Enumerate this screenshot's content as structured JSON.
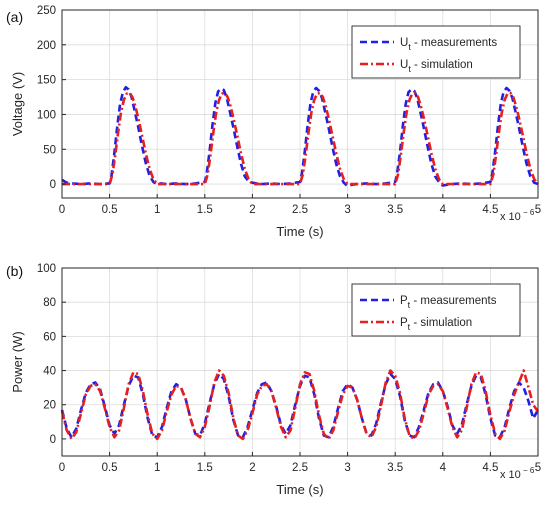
{
  "chart_data": [
    {
      "type": "line",
      "panel_label": "(a)",
      "xlabel": "Time (s)",
      "ylabel": "Voltage (V)",
      "x_multiplier": {
        "base": "x 10",
        "exponent": "− 6"
      },
      "xlim": [
        0,
        5
      ],
      "ylim": [
        -20,
        250
      ],
      "xticks": [
        0,
        0.5,
        1,
        1.5,
        2,
        2.5,
        3,
        3.5,
        4,
        4.5,
        5
      ],
      "xtick_labels": [
        "0",
        "0.5",
        "1",
        "1.5",
        "2",
        "2.5",
        "3",
        "3.5",
        "4",
        "4.5",
        "5"
      ],
      "yticks": [
        0,
        50,
        100,
        150,
        200,
        250
      ],
      "ytick_labels": [
        "0",
        "50",
        "100",
        "150",
        "200",
        "250"
      ],
      "grid": true,
      "legend_position": "top-right",
      "series": [
        {
          "name_main": "U",
          "name_sub": "t",
          "name_rest": " - measurements",
          "color": "#1f1fe6",
          "style": "dashed",
          "x": [
            0,
            0.05,
            0.1,
            0.2,
            0.3,
            0.4,
            0.5,
            0.52,
            0.55,
            0.58,
            0.61,
            0.64,
            0.67,
            0.7,
            0.73,
            0.76,
            0.8,
            0.84,
            0.88,
            0.92,
            0.96,
            1.0,
            1.04,
            1.1,
            1.2,
            1.3,
            1.4,
            1.5,
            1.52,
            1.55,
            1.58,
            1.61,
            1.64,
            1.67,
            1.7,
            1.73,
            1.76,
            1.8,
            1.84,
            1.88,
            1.92,
            1.96,
            2.0,
            2.04,
            2.1,
            2.2,
            2.3,
            2.4,
            2.5,
            2.52,
            2.55,
            2.58,
            2.61,
            2.64,
            2.67,
            2.7,
            2.73,
            2.76,
            2.8,
            2.84,
            2.88,
            2.92,
            2.96,
            3.0,
            3.04,
            3.1,
            3.2,
            3.3,
            3.4,
            3.5,
            3.52,
            3.55,
            3.58,
            3.61,
            3.64,
            3.67,
            3.7,
            3.73,
            3.76,
            3.8,
            3.84,
            3.88,
            3.92,
            3.96,
            4.0,
            4.04,
            4.1,
            4.2,
            4.3,
            4.4,
            4.5,
            4.52,
            4.55,
            4.58,
            4.61,
            4.64,
            4.67,
            4.7,
            4.73,
            4.76,
            4.8,
            4.84,
            4.88,
            4.92,
            4.96,
            5.0
          ],
          "y": [
            6,
            2,
            1,
            0,
            1,
            0,
            1,
            12,
            45,
            82,
            115,
            132,
            139,
            136,
            125,
            107,
            82,
            55,
            30,
            12,
            3,
            0,
            1,
            0,
            1,
            0,
            1,
            3,
            15,
            47,
            84,
            116,
            133,
            137,
            135,
            124,
            106,
            81,
            54,
            29,
            11,
            4,
            2,
            1,
            0,
            1,
            0,
            1,
            3,
            15,
            47,
            84,
            116,
            133,
            138,
            134,
            124,
            106,
            81,
            54,
            29,
            11,
            2,
            -3,
            -1,
            0,
            1,
            0,
            1,
            3,
            15,
            46,
            83,
            115,
            132,
            136,
            134,
            124,
            106,
            81,
            54,
            29,
            11,
            3,
            -2,
            -1,
            0,
            1,
            0,
            1,
            3,
            15,
            47,
            84,
            116,
            133,
            138,
            134,
            124,
            106,
            81,
            54,
            29,
            11,
            2,
            0
          ]
        },
        {
          "name_main": "U",
          "name_sub": "t",
          "name_rest": " - simulation",
          "color": "#e61f1f",
          "style": "dashdot",
          "x": [
            0,
            0.1,
            0.2,
            0.3,
            0.4,
            0.5,
            0.53,
            0.56,
            0.59,
            0.62,
            0.65,
            0.68,
            0.71,
            0.74,
            0.77,
            0.8,
            0.84,
            0.88,
            0.92,
            0.96,
            1.0,
            1.1,
            1.2,
            1.3,
            1.4,
            1.5,
            1.53,
            1.56,
            1.59,
            1.62,
            1.65,
            1.68,
            1.71,
            1.74,
            1.77,
            1.8,
            1.84,
            1.88,
            1.92,
            1.96,
            2.0,
            2.1,
            2.2,
            2.3,
            2.4,
            2.5,
            2.53,
            2.56,
            2.59,
            2.62,
            2.65,
            2.68,
            2.71,
            2.74,
            2.77,
            2.8,
            2.84,
            2.88,
            2.92,
            2.96,
            3.0,
            3.1,
            3.2,
            3.3,
            3.4,
            3.5,
            3.53,
            3.56,
            3.59,
            3.62,
            3.65,
            3.68,
            3.71,
            3.74,
            3.77,
            3.8,
            3.84,
            3.88,
            3.92,
            3.96,
            4.0,
            4.1,
            4.2,
            4.3,
            4.4,
            4.5,
            4.53,
            4.56,
            4.59,
            4.62,
            4.65,
            4.68,
            4.71,
            4.74,
            4.77,
            4.8,
            4.84,
            4.88,
            4.92,
            4.96,
            5.0
          ],
          "y": [
            0,
            0,
            0,
            0,
            0,
            0,
            14,
            42,
            75,
            103,
            121,
            130,
            131,
            125,
            112,
            95,
            70,
            44,
            22,
            7,
            0,
            0,
            0,
            0,
            0,
            0,
            14,
            42,
            75,
            103,
            121,
            130,
            131,
            125,
            112,
            95,
            70,
            44,
            22,
            7,
            0,
            0,
            0,
            0,
            0,
            0,
            14,
            42,
            75,
            103,
            121,
            130,
            131,
            125,
            112,
            95,
            70,
            44,
            22,
            7,
            0,
            0,
            0,
            0,
            0,
            0,
            14,
            42,
            75,
            103,
            121,
            130,
            131,
            125,
            112,
            95,
            70,
            44,
            22,
            7,
            0,
            0,
            0,
            0,
            0,
            0,
            14,
            42,
            75,
            103,
            121,
            130,
            131,
            125,
            112,
            95,
            70,
            44,
            22,
            7,
            0
          ]
        }
      ]
    },
    {
      "type": "line",
      "panel_label": "(b)",
      "xlabel": "Time (s)",
      "ylabel": "Power (W)",
      "x_multiplier": {
        "base": "x 10",
        "exponent": "− 6"
      },
      "xlim": [
        0,
        5
      ],
      "ylim": [
        -10,
        100
      ],
      "xticks": [
        0,
        0.5,
        1,
        1.5,
        2,
        2.5,
        3,
        3.5,
        4,
        4.5,
        5
      ],
      "xtick_labels": [
        "0",
        "0.5",
        "1",
        "1.5",
        "2",
        "2.5",
        "3",
        "3.5",
        "4",
        "4.5",
        "5"
      ],
      "yticks": [
        0,
        20,
        40,
        60,
        80,
        100
      ],
      "ytick_labels": [
        "0",
        "20",
        "40",
        "60",
        "80",
        "100"
      ],
      "grid": true,
      "legend_position": "top-right",
      "series": [
        {
          "name_main": "P",
          "name_sub": "t",
          "name_rest": " - measurements",
          "color": "#1f1fe6",
          "style": "dashed",
          "x": [
            0,
            0.05,
            0.1,
            0.15,
            0.2,
            0.25,
            0.3,
            0.35,
            0.4,
            0.45,
            0.5,
            0.55,
            0.6,
            0.65,
            0.7,
            0.75,
            0.8,
            0.85,
            0.9,
            0.95,
            1.0,
            1.05,
            1.1,
            1.15,
            1.2,
            1.25,
            1.3,
            1.35,
            1.4,
            1.45,
            1.5,
            1.55,
            1.6,
            1.65,
            1.7,
            1.75,
            1.8,
            1.85,
            1.9,
            1.95,
            2.0,
            2.05,
            2.1,
            2.15,
            2.2,
            2.25,
            2.3,
            2.35,
            2.4,
            2.45,
            2.5,
            2.55,
            2.6,
            2.65,
            2.7,
            2.75,
            2.8,
            2.85,
            2.9,
            2.95,
            3.0,
            3.05,
            3.1,
            3.15,
            3.2,
            3.25,
            3.3,
            3.35,
            3.4,
            3.45,
            3.5,
            3.55,
            3.6,
            3.65,
            3.7,
            3.75,
            3.8,
            3.85,
            3.9,
            3.95,
            4.0,
            4.05,
            4.1,
            4.15,
            4.2,
            4.25,
            4.3,
            4.35,
            4.4,
            4.45,
            4.5,
            4.55,
            4.6,
            4.65,
            4.7,
            4.75,
            4.8,
            4.85,
            4.9,
            4.95,
            5.0
          ],
          "y": [
            17,
            6,
            1,
            6,
            17,
            27,
            32,
            33,
            29,
            19,
            8,
            3,
            8,
            20,
            31,
            37,
            36,
            26,
            12,
            2,
            1,
            7,
            18,
            28,
            32,
            30,
            23,
            12,
            3,
            2,
            9,
            21,
            32,
            38,
            35,
            25,
            11,
            2,
            1,
            7,
            17,
            27,
            32,
            33,
            28,
            19,
            8,
            3,
            8,
            20,
            31,
            37,
            36,
            26,
            12,
            2,
            1,
            7,
            18,
            28,
            32,
            30,
            23,
            12,
            3,
            2,
            9,
            21,
            32,
            38,
            35,
            25,
            11,
            2,
            1,
            7,
            17,
            27,
            32,
            33,
            28,
            19,
            8,
            3,
            8,
            20,
            31,
            37,
            36,
            26,
            12,
            2,
            1,
            7,
            18,
            28,
            33,
            30,
            22,
            12,
            17
          ]
        },
        {
          "name_main": "P",
          "name_sub": "t",
          "name_rest": " - simulation",
          "color": "#e61f1f",
          "style": "dashdot",
          "x": [
            0,
            0.05,
            0.1,
            0.15,
            0.2,
            0.25,
            0.3,
            0.35,
            0.4,
            0.45,
            0.5,
            0.55,
            0.6,
            0.65,
            0.7,
            0.75,
            0.8,
            0.85,
            0.9,
            0.95,
            1.0,
            1.05,
            1.1,
            1.15,
            1.2,
            1.25,
            1.3,
            1.35,
            1.4,
            1.45,
            1.5,
            1.55,
            1.6,
            1.65,
            1.7,
            1.75,
            1.8,
            1.85,
            1.9,
            1.95,
            2.0,
            2.05,
            2.1,
            2.15,
            2.2,
            2.25,
            2.3,
            2.35,
            2.4,
            2.45,
            2.5,
            2.55,
            2.6,
            2.65,
            2.7,
            2.75,
            2.8,
            2.85,
            2.9,
            2.95,
            3.0,
            3.05,
            3.1,
            3.15,
            3.2,
            3.25,
            3.3,
            3.35,
            3.4,
            3.45,
            3.5,
            3.55,
            3.6,
            3.65,
            3.7,
            3.75,
            3.8,
            3.85,
            3.9,
            3.95,
            4.0,
            4.05,
            4.1,
            4.15,
            4.2,
            4.25,
            4.3,
            4.35,
            4.4,
            4.45,
            4.5,
            4.55,
            4.6,
            4.65,
            4.7,
            4.75,
            4.8,
            4.85,
            4.9,
            4.95,
            5.0
          ],
          "y": [
            16,
            5,
            0,
            4,
            15,
            26,
            31,
            32,
            28,
            18,
            7,
            1,
            5,
            18,
            32,
            39,
            38,
            28,
            14,
            3,
            0,
            5,
            16,
            26,
            31,
            30,
            23,
            12,
            3,
            1,
            7,
            19,
            33,
            40,
            37,
            27,
            12,
            2,
            0,
            5,
            15,
            26,
            31,
            32,
            28,
            18,
            7,
            1,
            5,
            18,
            32,
            39,
            38,
            28,
            14,
            3,
            0,
            5,
            16,
            26,
            31,
            30,
            23,
            12,
            3,
            1,
            7,
            19,
            33,
            40,
            37,
            27,
            12,
            2,
            0,
            5,
            15,
            26,
            31,
            32,
            28,
            18,
            7,
            1,
            5,
            18,
            32,
            39,
            38,
            28,
            14,
            3,
            0,
            5,
            16,
            26,
            33,
            40,
            30,
            20,
            16
          ]
        }
      ]
    }
  ]
}
